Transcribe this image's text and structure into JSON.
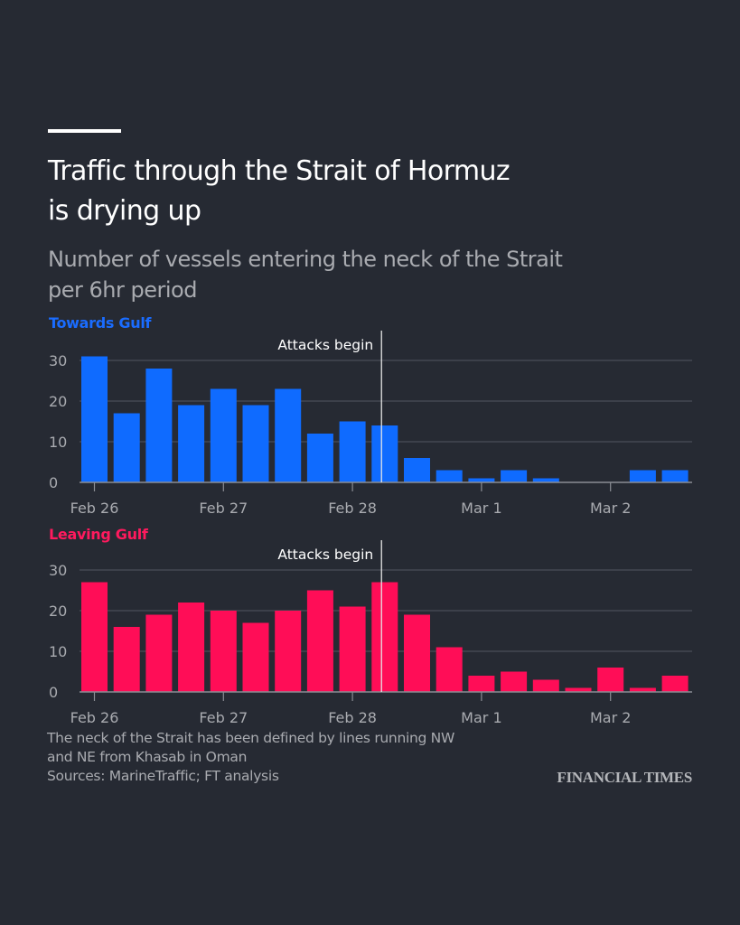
{
  "header": {
    "title_line1": "Traffic through the Strait of Hormuz",
    "title_line2": "is drying up",
    "subtitle_line1": "Number of vessels entering the neck of the Strait",
    "subtitle_line2": "per 6hr period"
  },
  "colors": {
    "background": "#262a33",
    "towards": "#0f6bff",
    "leaving": "#ff0d57",
    "grid": "#4a4e57",
    "axis_text": "#a9abb0",
    "annotation": "#ffffff"
  },
  "chart_data": [
    {
      "type": "bar",
      "title": "Towards Gulf",
      "xlabel": "",
      "ylabel": "",
      "period": "6hr",
      "x_tick_labels": [
        "Feb 26",
        "Feb 27",
        "Feb 28",
        "Mar 1",
        "Mar 2"
      ],
      "x_tick_bar_index": [
        0,
        4,
        8,
        12,
        16
      ],
      "y_ticks": [
        0,
        10,
        20,
        30
      ],
      "ylim": [
        0,
        31
      ],
      "grid": true,
      "values": [
        31,
        17,
        28,
        19,
        23,
        19,
        23,
        12,
        15,
        14,
        6,
        3,
        1,
        3,
        1,
        0,
        0,
        3,
        3
      ],
      "annotation": {
        "text": "Attacks begin",
        "after_bar_index": 9.25
      }
    },
    {
      "type": "bar",
      "title": "Leaving Gulf",
      "xlabel": "",
      "ylabel": "",
      "period": "6hr",
      "x_tick_labels": [
        "Feb 26",
        "Feb 27",
        "Feb 28",
        "Mar 1",
        "Mar 2"
      ],
      "x_tick_bar_index": [
        0,
        4,
        8,
        12,
        16
      ],
      "y_ticks": [
        0,
        10,
        20,
        30
      ],
      "ylim": [
        0,
        31
      ],
      "grid": true,
      "values": [
        27,
        16,
        19,
        22,
        20,
        17,
        20,
        25,
        21,
        27,
        19,
        11,
        4,
        5,
        3,
        1,
        6,
        1,
        4
      ],
      "annotation": {
        "text": "Attacks begin",
        "after_bar_index": 9.25
      }
    }
  ],
  "footer": {
    "note_line1": "The neck of the Strait has been defined by lines running NW",
    "note_line2": "and NE from Khasab in Oman",
    "sources": "Sources: MarineTraffic; FT analysis",
    "brand": "FINANCIAL TIMES"
  }
}
